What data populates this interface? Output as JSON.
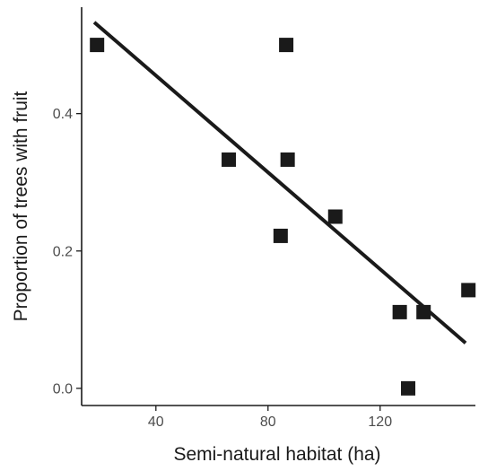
{
  "chart_data": {
    "type": "scatter",
    "title": "",
    "xlabel": "Semi-natural habitat (ha)",
    "ylabel": "Proportion of trees with fruit",
    "xlim": [
      13.5,
      154.0
    ],
    "ylim": [
      -0.025,
      0.555
    ],
    "x_ticks": [
      40,
      80,
      120
    ],
    "x_tick_labels": [
      "40",
      "80",
      "120"
    ],
    "y_ticks": [
      0.0,
      0.2,
      0.4
    ],
    "y_tick_labels": [
      "0.0",
      "0.2",
      "0.4"
    ],
    "grid": false,
    "legend": "none",
    "points": [
      {
        "x": 19.0,
        "y": 0.5
      },
      {
        "x": 66.0,
        "y": 0.333
      },
      {
        "x": 84.5,
        "y": 0.222
      },
      {
        "x": 86.5,
        "y": 0.5
      },
      {
        "x": 87.0,
        "y": 0.333
      },
      {
        "x": 104.0,
        "y": 0.25
      },
      {
        "x": 127.0,
        "y": 0.111
      },
      {
        "x": 130.0,
        "y": 0.0
      },
      {
        "x": 135.5,
        "y": 0.111
      },
      {
        "x": 151.5,
        "y": 0.143
      }
    ],
    "trend_line": {
      "x": [
        18.0,
        150.5
      ],
      "y": [
        0.533,
        0.066
      ]
    },
    "colors": {
      "points": "#1a1a1a",
      "line": "#1a1a1a",
      "axis": "#1a1a1a"
    }
  }
}
